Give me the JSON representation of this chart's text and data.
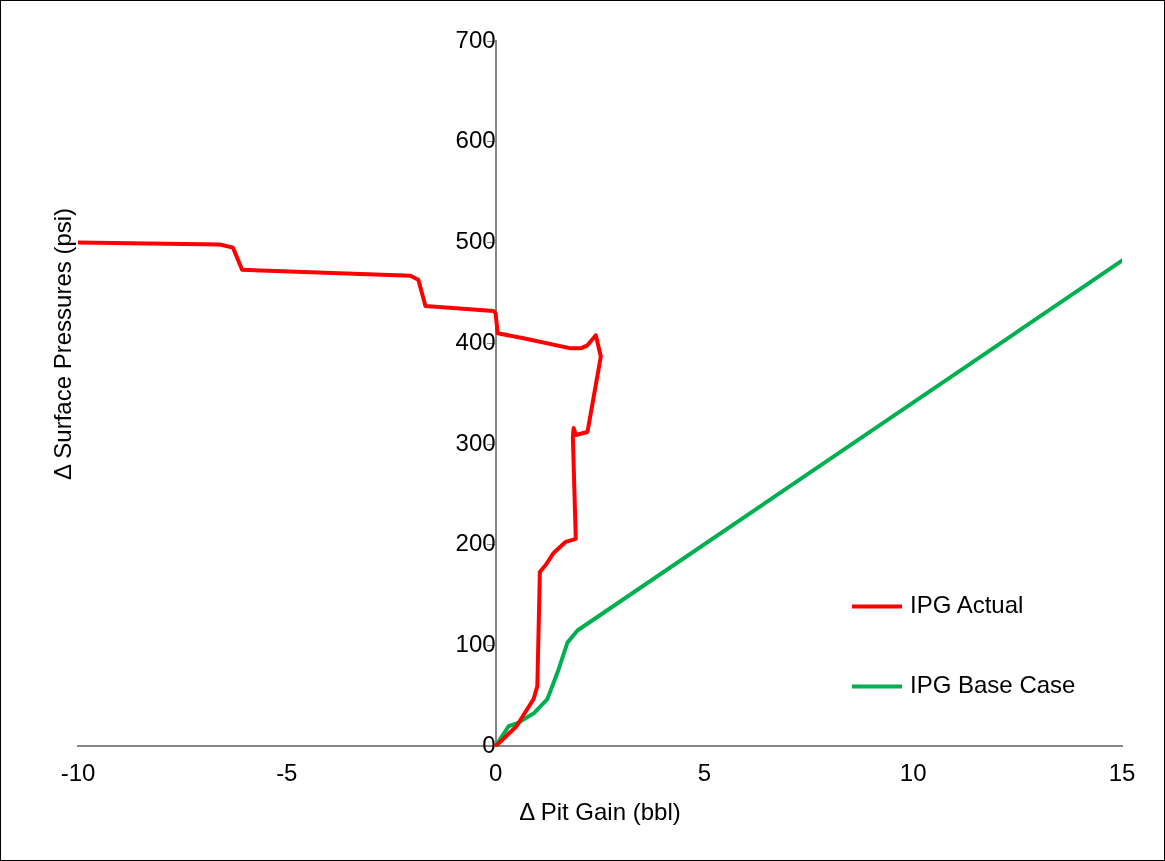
{
  "chart_data": {
    "type": "line",
    "xlabel": "Δ Pit Gain (bbl)",
    "ylabel": "Δ Surface Pressures (psi)",
    "xlim": [
      -10,
      15
    ],
    "xticks": [
      -10,
      -5,
      0,
      5,
      10,
      15
    ],
    "ylim": [
      0,
      700
    ],
    "yticks": [
      0,
      100,
      200,
      300,
      400,
      500,
      600,
      700
    ],
    "grid": false,
    "legend": "right",
    "marker": "none",
    "line_style": "solid",
    "series": [
      {
        "name": "IPG Actual",
        "color": "#ff0000",
        "x": [
          0,
          0.5,
          0.91,
          1.0,
          1.06,
          1.2,
          1.39,
          1.68,
          1.92,
          1.85,
          1.87,
          1.92,
          2.2,
          2.52,
          2.4,
          2.2,
          2.04,
          1.8,
          0.67,
          0.05,
          0,
          -0.05,
          -1.68,
          -1.85,
          -2.04,
          -6.07,
          -6.29,
          -6.6,
          -10
        ],
        "values": [
          0,
          20,
          47,
          60,
          173,
          180,
          192,
          203,
          206,
          307,
          316,
          309,
          312,
          387,
          408,
          398,
          395,
          395,
          405,
          410,
          430,
          432,
          437,
          463,
          467,
          473,
          495,
          498,
          500
        ]
      },
      {
        "name": "IPG Base Case",
        "color": "#00b050",
        "x": [
          0,
          0.31,
          0.52,
          0.92,
          1.24,
          1.48,
          1.72,
          1.96,
          15
        ],
        "values": [
          0,
          20,
          23,
          33,
          47,
          73,
          103,
          115,
          482
        ]
      }
    ]
  }
}
